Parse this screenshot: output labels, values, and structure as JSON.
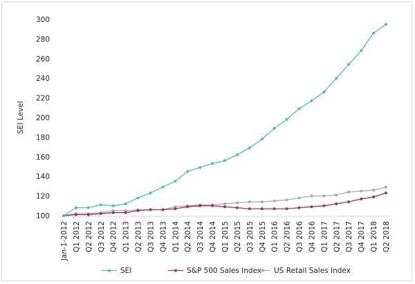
{
  "chart_data": {
    "type": "line",
    "title": "",
    "xlabel": "",
    "ylabel": "SEI Level",
    "ylim": [
      100,
      300
    ],
    "yticks": [
      100,
      120,
      140,
      160,
      180,
      200,
      220,
      240,
      260,
      280,
      300
    ],
    "grid": false,
    "legend_position": "bottom",
    "categories": [
      "Jan-1-2012",
      "Q1 2012",
      "Q2 2012",
      "Q3 2012",
      "Q4 2012",
      "Q1 2013",
      "Q2 2013",
      "Q3 2013",
      "Q4 2013",
      "Q1 2014",
      "Q2 2014",
      "Q3 2014",
      "Q4 2014",
      "Q1 2015",
      "Q2 2015",
      "Q3 2015",
      "Q4 2015",
      "Q1 2016",
      "Q2 2016",
      "Q3 2016",
      "Q4 2016",
      "Q1 2017",
      "Q2 2017",
      "Q3 2017",
      "Q4 2017",
      "Q1 2018",
      "Q2 2018"
    ],
    "series": [
      {
        "name": "SEI",
        "color": "#4cc49a",
        "values": [
          100,
          108,
          108,
          111,
          110,
          112,
          118,
          123,
          129,
          135,
          145,
          149,
          153,
          156,
          162,
          169,
          178,
          189,
          198,
          209,
          217,
          226,
          240,
          254,
          268,
          286,
          295
        ]
      },
      {
        "name": "S&P 500 Sales Index",
        "color": "#a3324b",
        "values": [
          100,
          101,
          101,
          102,
          103,
          103,
          105,
          106,
          106,
          107,
          109,
          110,
          110,
          109,
          108,
          107,
          107,
          107,
          107,
          108,
          109,
          110,
          112,
          114,
          117,
          119,
          123
        ]
      },
      {
        "name": "US Retail Sales Index",
        "color": "#a8a8b4",
        "values": [
          100,
          102,
          102,
          103,
          105,
          105,
          106,
          106,
          106,
          109,
          110,
          111,
          111,
          112,
          113,
          114,
          114,
          115,
          116,
          118,
          120,
          120,
          121,
          124,
          125,
          126,
          129
        ]
      }
    ]
  }
}
